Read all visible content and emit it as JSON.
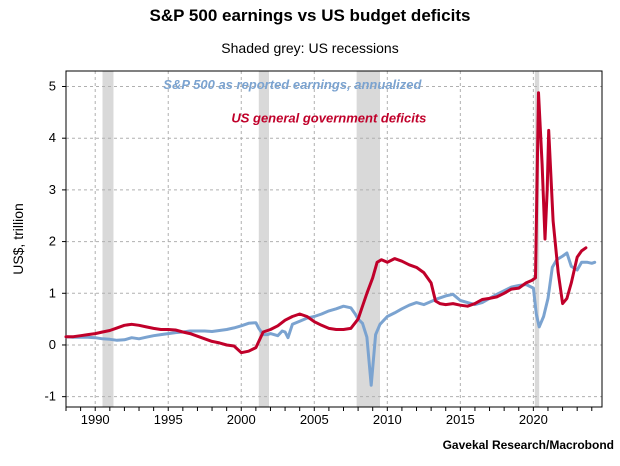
{
  "colors": {
    "earnings": "#7ba3d0",
    "deficits": "#c0002a",
    "recession": "#d9d9d9",
    "grid": "#b0b0b0"
  },
  "chart_data": {
    "type": "line",
    "title": "S&P 500 earnings vs US budget deficits",
    "subtitle": "Shaded grey: US recessions",
    "ylabel": "US$, trillion",
    "source": "Gavekal Research/Macrobond",
    "xlim": [
      1988,
      2024.7
    ],
    "ylim": [
      -1.2,
      5.3
    ],
    "grid": true,
    "x_ticks": [
      1990,
      1995,
      2000,
      2005,
      2010,
      2015,
      2020
    ],
    "y_ticks": [
      -1,
      0,
      1,
      2,
      3,
      4,
      5
    ],
    "recessions": [
      [
        1990.5,
        1991.25
      ],
      [
        2001.2,
        2001.9
      ],
      [
        2007.9,
        2009.5
      ],
      [
        2020.1,
        2020.4
      ]
    ],
    "series": [
      {
        "name": "S&P 500 as reported earnings, annualized",
        "color": "#7ba3d0",
        "points": [
          [
            1988.0,
            0.16
          ],
          [
            1988.5,
            0.15
          ],
          [
            1989.0,
            0.15
          ],
          [
            1989.5,
            0.15
          ],
          [
            1990.0,
            0.14
          ],
          [
            1990.5,
            0.12
          ],
          [
            1991.0,
            0.11
          ],
          [
            1991.5,
            0.09
          ],
          [
            1992.0,
            0.1
          ],
          [
            1992.5,
            0.14
          ],
          [
            1993.0,
            0.12
          ],
          [
            1993.5,
            0.15
          ],
          [
            1994.0,
            0.18
          ],
          [
            1994.5,
            0.2
          ],
          [
            1995.0,
            0.22
          ],
          [
            1995.5,
            0.24
          ],
          [
            1996.0,
            0.25
          ],
          [
            1996.5,
            0.27
          ],
          [
            1997.0,
            0.27
          ],
          [
            1997.5,
            0.27
          ],
          [
            1998.0,
            0.26
          ],
          [
            1998.5,
            0.28
          ],
          [
            1999.0,
            0.3
          ],
          [
            1999.5,
            0.33
          ],
          [
            2000.0,
            0.37
          ],
          [
            2000.5,
            0.42
          ],
          [
            2001.0,
            0.43
          ],
          [
            2001.2,
            0.32
          ],
          [
            2001.5,
            0.2
          ],
          [
            2001.8,
            0.2
          ],
          [
            2002.0,
            0.22
          ],
          [
            2002.5,
            0.18
          ],
          [
            2002.8,
            0.27
          ],
          [
            2003.0,
            0.25
          ],
          [
            2003.2,
            0.14
          ],
          [
            2003.5,
            0.4
          ],
          [
            2004.0,
            0.46
          ],
          [
            2004.5,
            0.52
          ],
          [
            2005.0,
            0.55
          ],
          [
            2005.5,
            0.6
          ],
          [
            2006.0,
            0.66
          ],
          [
            2006.5,
            0.7
          ],
          [
            2007.0,
            0.75
          ],
          [
            2007.5,
            0.72
          ],
          [
            2007.8,
            0.6
          ],
          [
            2008.0,
            0.5
          ],
          [
            2008.3,
            0.42
          ],
          [
            2008.6,
            0.15
          ],
          [
            2008.9,
            -0.78
          ],
          [
            2009.2,
            0.2
          ],
          [
            2009.5,
            0.4
          ],
          [
            2010.0,
            0.55
          ],
          [
            2010.5,
            0.62
          ],
          [
            2011.0,
            0.7
          ],
          [
            2011.5,
            0.77
          ],
          [
            2012.0,
            0.82
          ],
          [
            2012.5,
            0.78
          ],
          [
            2013.0,
            0.84
          ],
          [
            2013.5,
            0.9
          ],
          [
            2014.0,
            0.95
          ],
          [
            2014.5,
            0.98
          ],
          [
            2015.0,
            0.86
          ],
          [
            2015.5,
            0.82
          ],
          [
            2016.0,
            0.78
          ],
          [
            2016.5,
            0.82
          ],
          [
            2017.0,
            0.9
          ],
          [
            2017.5,
            0.98
          ],
          [
            2018.0,
            1.05
          ],
          [
            2018.5,
            1.12
          ],
          [
            2019.0,
            1.15
          ],
          [
            2019.5,
            1.17
          ],
          [
            2020.0,
            1.1
          ],
          [
            2020.2,
            0.6
          ],
          [
            2020.4,
            0.35
          ],
          [
            2020.7,
            0.55
          ],
          [
            2021.0,
            0.9
          ],
          [
            2021.3,
            1.5
          ],
          [
            2021.6,
            1.65
          ],
          [
            2022.0,
            1.72
          ],
          [
            2022.3,
            1.78
          ],
          [
            2022.6,
            1.52
          ],
          [
            2023.0,
            1.45
          ],
          [
            2023.3,
            1.6
          ],
          [
            2023.7,
            1.6
          ],
          [
            2024.0,
            1.58
          ],
          [
            2024.2,
            1.6
          ]
        ]
      },
      {
        "name": "US general government deficits",
        "color": "#c0002a",
        "points": [
          [
            1988.0,
            0.16
          ],
          [
            1988.5,
            0.16
          ],
          [
            1989.0,
            0.18
          ],
          [
            1989.5,
            0.2
          ],
          [
            1990.0,
            0.22
          ],
          [
            1990.5,
            0.25
          ],
          [
            1991.0,
            0.28
          ],
          [
            1991.5,
            0.33
          ],
          [
            1992.0,
            0.38
          ],
          [
            1992.5,
            0.4
          ],
          [
            1993.0,
            0.38
          ],
          [
            1993.5,
            0.35
          ],
          [
            1994.0,
            0.32
          ],
          [
            1994.5,
            0.3
          ],
          [
            1995.0,
            0.3
          ],
          [
            1995.5,
            0.29
          ],
          [
            1996.0,
            0.25
          ],
          [
            1996.5,
            0.22
          ],
          [
            1997.0,
            0.17
          ],
          [
            1997.5,
            0.12
          ],
          [
            1998.0,
            0.07
          ],
          [
            1998.5,
            0.04
          ],
          [
            1999.0,
            0.0
          ],
          [
            1999.5,
            -0.02
          ],
          [
            2000.0,
            -0.15
          ],
          [
            2000.5,
            -0.12
          ],
          [
            2001.0,
            -0.05
          ],
          [
            2001.5,
            0.25
          ],
          [
            2002.0,
            0.3
          ],
          [
            2002.5,
            0.37
          ],
          [
            2003.0,
            0.48
          ],
          [
            2003.5,
            0.55
          ],
          [
            2004.0,
            0.6
          ],
          [
            2004.5,
            0.55
          ],
          [
            2005.0,
            0.45
          ],
          [
            2005.5,
            0.38
          ],
          [
            2006.0,
            0.32
          ],
          [
            2006.5,
            0.3
          ],
          [
            2007.0,
            0.3
          ],
          [
            2007.5,
            0.32
          ],
          [
            2008.0,
            0.5
          ],
          [
            2008.3,
            0.75
          ],
          [
            2008.6,
            1.0
          ],
          [
            2009.0,
            1.3
          ],
          [
            2009.3,
            1.6
          ],
          [
            2009.6,
            1.65
          ],
          [
            2010.0,
            1.6
          ],
          [
            2010.5,
            1.67
          ],
          [
            2011.0,
            1.62
          ],
          [
            2011.5,
            1.55
          ],
          [
            2012.0,
            1.5
          ],
          [
            2012.5,
            1.4
          ],
          [
            2013.0,
            1.2
          ],
          [
            2013.3,
            0.85
          ],
          [
            2013.6,
            0.8
          ],
          [
            2014.0,
            0.78
          ],
          [
            2014.5,
            0.8
          ],
          [
            2015.0,
            0.77
          ],
          [
            2015.5,
            0.75
          ],
          [
            2016.0,
            0.8
          ],
          [
            2016.5,
            0.88
          ],
          [
            2017.0,
            0.9
          ],
          [
            2017.5,
            0.93
          ],
          [
            2018.0,
            1.0
          ],
          [
            2018.5,
            1.08
          ],
          [
            2019.0,
            1.1
          ],
          [
            2019.5,
            1.2
          ],
          [
            2019.9,
            1.25
          ],
          [
            2020.15,
            1.3
          ],
          [
            2020.35,
            4.88
          ],
          [
            2020.6,
            3.5
          ],
          [
            2020.8,
            2.05
          ],
          [
            2020.95,
            3.0
          ],
          [
            2021.05,
            4.15
          ],
          [
            2021.35,
            2.4
          ],
          [
            2021.7,
            1.4
          ],
          [
            2022.0,
            0.8
          ],
          [
            2022.3,
            0.9
          ],
          [
            2022.6,
            1.2
          ],
          [
            2023.0,
            1.7
          ],
          [
            2023.3,
            1.82
          ],
          [
            2023.6,
            1.88
          ]
        ]
      }
    ],
    "annotations": [
      {
        "text": "S&P 500 as reported earnings, annualized",
        "x": 2003.5,
        "y": 4.95,
        "color": "#7ba3d0"
      },
      {
        "text": "US general government deficits",
        "x": 2006.0,
        "y": 4.3,
        "color": "#c0002a"
      }
    ]
  }
}
